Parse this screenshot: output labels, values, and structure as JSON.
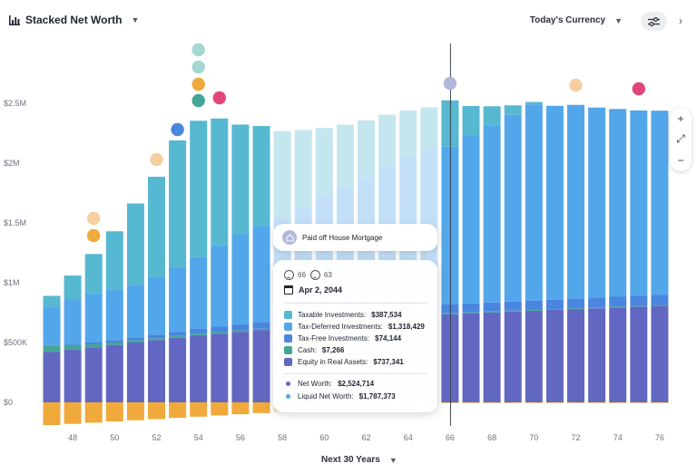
{
  "header": {
    "title": "Stacked Net Worth",
    "currency_label": "Today's Currency",
    "icons": {
      "title": "bar-chart-icon",
      "filter": "sliders-icon",
      "next": "chevron-right-icon"
    }
  },
  "zoom": {
    "in": "+",
    "fit": "⤢",
    "out": "−"
  },
  "event": {
    "label": "Paid off House Mortgage",
    "icon": "house-icon"
  },
  "tooltip": {
    "age1": "66",
    "age2": "63",
    "date": "Apr 2, 2044",
    "rows": [
      {
        "label": "Taxable Investments:",
        "value": "$387,534",
        "color": "#56b8d1"
      },
      {
        "label": "Tax-Deferred Investments:",
        "value": "$1,318,429",
        "color": "#52a7eb"
      },
      {
        "label": "Tax-Free Investments:",
        "value": "$74,144",
        "color": "#4a86df"
      },
      {
        "label": "Cash:",
        "value": "$7,266",
        "color": "#44a597"
      },
      {
        "label": "Equity in Real Assets:",
        "value": "$737,341",
        "color": "#6268c2"
      }
    ],
    "totals": [
      {
        "label": "Net Worth:",
        "value": "$2,524,714",
        "color": "#6268c2"
      },
      {
        "label": "Liquid Net Worth:",
        "value": "$1,787,373",
        "color": "#52a7eb"
      }
    ]
  },
  "footer": {
    "range_label": "Next 30 Years"
  },
  "chart_data": {
    "type": "bar",
    "stacked": true,
    "y_ticks": [
      "$0",
      "$500K",
      "$1M",
      "$1.5M",
      "$2M",
      "$2.5M"
    ],
    "ylim": [
      -200000,
      3000000
    ],
    "x_ticks": [
      48,
      50,
      52,
      54,
      56,
      58,
      60,
      62,
      64,
      66,
      68,
      70,
      72,
      74,
      76
    ],
    "ages": [
      47,
      48,
      49,
      50,
      51,
      52,
      53,
      54,
      55,
      56,
      57,
      58,
      59,
      60,
      61,
      62,
      63,
      64,
      65,
      66,
      67,
      68,
      69,
      70,
      71,
      72,
      73,
      74,
      75,
      76
    ],
    "highlight_age": 66,
    "series": [
      {
        "key": "debt",
        "color": "#f0a93b",
        "values": [
          -190000,
          -180000,
          -170000,
          -160000,
          -150000,
          -140000,
          -130000,
          -120000,
          -110000,
          -100000,
          -90000,
          -80000,
          -70000,
          -60000,
          -50000,
          -40000,
          -30000,
          -20000,
          -10000,
          -5000,
          -5000,
          -5000,
          -5000,
          -5000,
          -5000,
          -5000,
          -5000,
          -5000,
          -5000,
          -5000
        ]
      },
      {
        "key": "equity",
        "color": "#6268c2",
        "values": [
          420000,
          440000,
          460000,
          480000,
          500000,
          520000,
          540000,
          560000,
          575000,
          590000,
          605000,
          620000,
          635000,
          650000,
          665000,
          680000,
          695000,
          710000,
          725000,
          737341,
          745000,
          752000,
          759000,
          766000,
          773000,
          780000,
          787000,
          794000,
          801000,
          808000
        ]
      },
      {
        "key": "cash",
        "color": "#44a597",
        "values": [
          55000,
          40000,
          25000,
          20000,
          18000,
          16000,
          15000,
          14000,
          13000,
          12000,
          11000,
          10000,
          9500,
          9000,
          8500,
          8000,
          7700,
          7500,
          7300,
          7266,
          7200,
          7100,
          7000,
          6900,
          6800,
          6700,
          6600,
          6500,
          6400,
          6300
        ]
      },
      {
        "key": "taxfree",
        "color": "#4a86df",
        "values": [
          5000,
          10000,
          15000,
          20000,
          25000,
          30000,
          35000,
          40000,
          45000,
          50000,
          54000,
          58000,
          62000,
          65000,
          68000,
          70000,
          72000,
          73000,
          74000,
          74144,
          75000,
          76000,
          77000,
          78000,
          79000,
          80000,
          81000,
          82000,
          83000,
          84000
        ]
      },
      {
        "key": "taxdeferred",
        "color": "#52a7eb",
        "values": [
          320000,
          370000,
          410000,
          420000,
          440000,
          480000,
          540000,
          600000,
          680000,
          750000,
          800000,
          860000,
          930000,
          1000000,
          1060000,
          1120000,
          1200000,
          1260000,
          1300000,
          1318429,
          1400000,
          1480000,
          1560000,
          1640000,
          1620000,
          1620000,
          1590000,
          1570000,
          1550000,
          1540000
        ]
      },
      {
        "key": "taxable",
        "color": "#56b8d1",
        "values": [
          90000,
          200000,
          330000,
          490000,
          680000,
          840000,
          1060000,
          1140000,
          1060000,
          920000,
          840000,
          720000,
          640000,
          570000,
          520000,
          480000,
          430000,
          390000,
          360000,
          387534,
          250000,
          160000,
          80000,
          20000,
          0,
          0,
          0,
          0,
          0,
          0
        ]
      }
    ],
    "hover_column_value": 2524714
  }
}
